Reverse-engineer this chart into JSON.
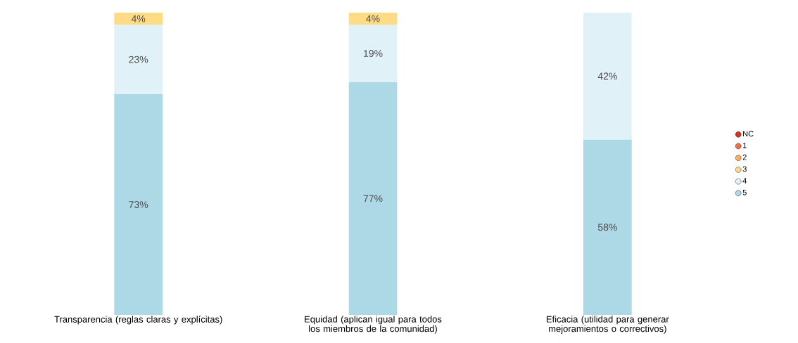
{
  "chart_data": {
    "type": "bar",
    "stacked": true,
    "legend": "right",
    "categories": [
      "Transparencia (reglas claras y explícitas)",
      "Equidad (aplican igual para todos los miembros de la comunidad)",
      "Eficacia (utilidad para generar mejoramientos o correctivos)"
    ],
    "series": [
      {
        "name": "5",
        "color": "#add8e6",
        "values": [
          73,
          77,
          58
        ],
        "value_labels": [
          "73%",
          "77%",
          "58%"
        ]
      },
      {
        "name": "4",
        "color": "#e0f1f8",
        "values": [
          23,
          19,
          42
        ],
        "value_labels": [
          "23%",
          "19%",
          "42%"
        ]
      },
      {
        "name": "3",
        "color": "#fedc86",
        "values": [
          4,
          4,
          null
        ],
        "value_labels": [
          "4%",
          "4%",
          null
        ]
      },
      {
        "name": "2",
        "color": "#fdae61",
        "values": [
          null,
          null,
          null
        ]
      },
      {
        "name": "1",
        "color": "#f46d43",
        "values": [
          null,
          null,
          null
        ]
      },
      {
        "name": "NC",
        "color": "#d73027",
        "values": [
          null,
          null,
          null
        ]
      }
    ]
  }
}
